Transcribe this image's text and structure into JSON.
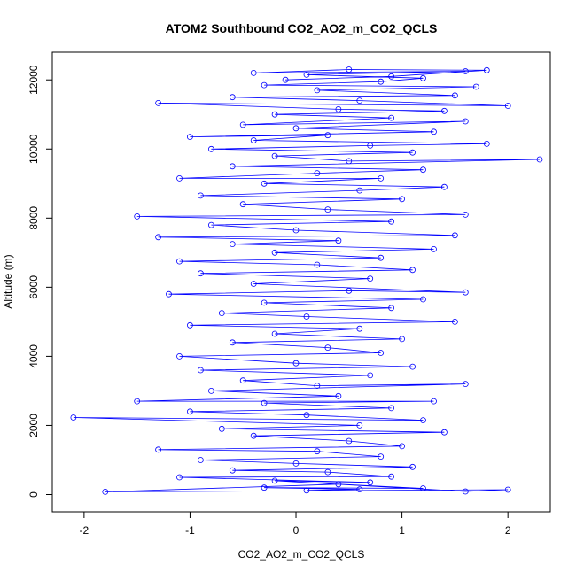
{
  "chart_data": {
    "type": "scatter",
    "title": "ATOM2 Southbound CO2_AO2_m_CO2_QCLS",
    "xlabel": "CO2_AO2_m_CO2_QCLS",
    "ylabel": "Altitude (m)",
    "xlim": [
      -2.3,
      2.4
    ],
    "ylim": [
      -500,
      12800
    ],
    "x_ticks": [
      -2,
      -1,
      0,
      1,
      2
    ],
    "y_ticks": [
      0,
      2000,
      4000,
      6000,
      8000,
      10000,
      12000
    ],
    "x_tick_labels": [
      "-2",
      "-1",
      "0",
      "1",
      "2"
    ],
    "y_tick_labels": [
      "0",
      "2000",
      "4000",
      "6000",
      "8000",
      "10000",
      "12000"
    ],
    "grid": false,
    "legend": "none",
    "series": [
      {
        "color": "#0000ff",
        "marker": "open-circle",
        "line": true,
        "points": [
          [
            0.1,
            120
          ],
          [
            0.6,
            150
          ],
          [
            -0.3,
            200
          ],
          [
            1.2,
            180
          ],
          [
            0.4,
            300
          ],
          [
            -1.8,
            80
          ],
          [
            2.0,
            140
          ],
          [
            1.6,
            90
          ],
          [
            -0.2,
            400
          ],
          [
            0.7,
            350
          ],
          [
            -1.1,
            500
          ],
          [
            0.9,
            520
          ],
          [
            0.3,
            650
          ],
          [
            -0.6,
            700
          ],
          [
            1.1,
            800
          ],
          [
            0.0,
            900
          ],
          [
            -0.9,
            1000
          ],
          [
            0.8,
            1100
          ],
          [
            0.2,
            1250
          ],
          [
            -1.3,
            1300
          ],
          [
            1.0,
            1400
          ],
          [
            0.5,
            1550
          ],
          [
            -0.4,
            1700
          ],
          [
            1.4,
            1800
          ],
          [
            -0.7,
            1900
          ],
          [
            0.6,
            2000
          ],
          [
            -2.1,
            2230
          ],
          [
            1.2,
            2150
          ],
          [
            0.1,
            2300
          ],
          [
            -1.0,
            2400
          ],
          [
            0.9,
            2500
          ],
          [
            -0.3,
            2650
          ],
          [
            1.3,
            2700
          ],
          [
            -1.5,
            2700
          ],
          [
            0.4,
            2850
          ],
          [
            -0.8,
            3000
          ],
          [
            1.6,
            3200
          ],
          [
            0.2,
            3150
          ],
          [
            -0.5,
            3300
          ],
          [
            0.7,
            3450
          ],
          [
            -0.9,
            3600
          ],
          [
            1.1,
            3700
          ],
          [
            0.0,
            3800
          ],
          [
            -1.1,
            4000
          ],
          [
            0.8,
            4100
          ],
          [
            0.3,
            4250
          ],
          [
            -0.6,
            4400
          ],
          [
            1.0,
            4500
          ],
          [
            -0.2,
            4650
          ],
          [
            0.6,
            4800
          ],
          [
            -1.0,
            4900
          ],
          [
            1.5,
            5000
          ],
          [
            0.1,
            5150
          ],
          [
            -0.7,
            5250
          ],
          [
            0.9,
            5400
          ],
          [
            -0.3,
            5550
          ],
          [
            1.2,
            5650
          ],
          [
            -1.2,
            5800
          ],
          [
            0.5,
            5900
          ],
          [
            1.6,
            5850
          ],
          [
            -0.4,
            6100
          ],
          [
            0.7,
            6250
          ],
          [
            -0.9,
            6400
          ],
          [
            1.1,
            6500
          ],
          [
            0.2,
            6650
          ],
          [
            -1.1,
            6750
          ],
          [
            0.8,
            6850
          ],
          [
            -0.2,
            7000
          ],
          [
            1.3,
            7100
          ],
          [
            -0.6,
            7250
          ],
          [
            0.4,
            7350
          ],
          [
            -1.3,
            7450
          ],
          [
            1.5,
            7500
          ],
          [
            0.0,
            7650
          ],
          [
            -0.8,
            7800
          ],
          [
            0.9,
            7900
          ],
          [
            -1.5,
            8050
          ],
          [
            1.6,
            8100
          ],
          [
            0.3,
            8250
          ],
          [
            -0.5,
            8400
          ],
          [
            1.0,
            8550
          ],
          [
            -0.9,
            8650
          ],
          [
            0.6,
            8800
          ],
          [
            1.4,
            8900
          ],
          [
            -0.3,
            9000
          ],
          [
            0.8,
            9150
          ],
          [
            -1.1,
            9150
          ],
          [
            0.2,
            9300
          ],
          [
            1.2,
            9400
          ],
          [
            -0.6,
            9500
          ],
          [
            2.3,
            9700
          ],
          [
            0.5,
            9650
          ],
          [
            -0.2,
            9800
          ],
          [
            1.1,
            9900
          ],
          [
            -0.8,
            10000
          ],
          [
            0.7,
            10100
          ],
          [
            1.8,
            10150
          ],
          [
            -0.4,
            10250
          ],
          [
            0.3,
            10400
          ],
          [
            -1.0,
            10350
          ],
          [
            1.3,
            10500
          ],
          [
            0.0,
            10600
          ],
          [
            1.6,
            10800
          ],
          [
            -0.5,
            10700
          ],
          [
            0.9,
            10900
          ],
          [
            -0.2,
            11000
          ],
          [
            1.4,
            11100
          ],
          [
            0.4,
            11150
          ],
          [
            -1.3,
            11330
          ],
          [
            2.0,
            11250
          ],
          [
            0.6,
            11400
          ],
          [
            -0.6,
            11500
          ],
          [
            1.5,
            11550
          ],
          [
            0.2,
            11700
          ],
          [
            1.7,
            11800
          ],
          [
            -0.3,
            11850
          ],
          [
            0.8,
            11950
          ],
          [
            1.2,
            12050
          ],
          [
            0.1,
            12150
          ],
          [
            1.6,
            12250
          ],
          [
            -0.4,
            12200
          ],
          [
            0.5,
            12300
          ],
          [
            1.8,
            12280
          ],
          [
            0.9,
            12100
          ],
          [
            -0.1,
            12000
          ]
        ]
      }
    ]
  }
}
